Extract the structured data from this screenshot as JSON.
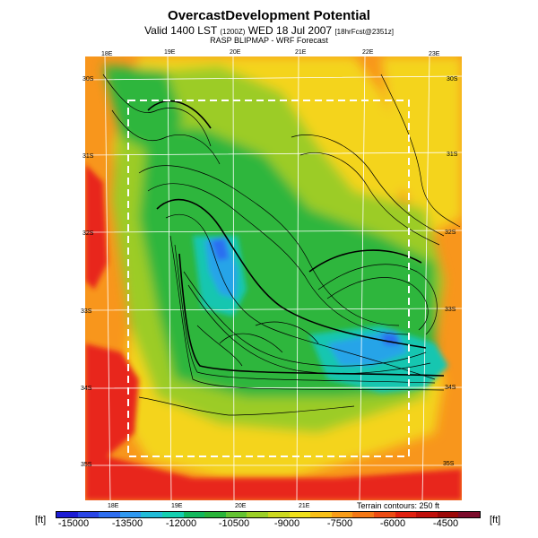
{
  "header": {
    "title": "OvercastDevelopment Potential",
    "subtitle_main": "Valid 1400 LST",
    "subtitle_code1": "(1200Z)",
    "subtitle_date": "WED 18 Jul 2007",
    "subtitle_code2": "[18hrFcst@2351z]",
    "source": "RASP BLIPMAP - WRF Forecast"
  },
  "axes": {
    "top_lon_labels": [
      "18E",
      "19E",
      "20E",
      "21E",
      "22E",
      "23E"
    ],
    "bottom_lon_labels": [
      "18E",
      "19E",
      "20E",
      "21E"
    ],
    "left_lat_labels": [
      "30S",
      "31S",
      "32S",
      "33S",
      "34S",
      "35S"
    ],
    "right_lat_labels": [
      "30S",
      "31S",
      "32S",
      "33S",
      "34S",
      "35S"
    ]
  },
  "legend": {
    "unit_left": "[ft]",
    "unit_right": "[ft]",
    "terrain_note": "Terrain contours: 250 ft",
    "tick_labels": [
      "-15000",
      "-13500",
      "-12000",
      "-10500",
      "-9000",
      "-7500",
      "-6000",
      "-4500"
    ],
    "colors": [
      "#1c1cd4",
      "#2a46e6",
      "#2e6ef0",
      "#2f98f0",
      "#22bcd8",
      "#14cfb0",
      "#12b85c",
      "#2ab43a",
      "#64c432",
      "#9cd028",
      "#ccd820",
      "#f0e01c",
      "#f8c018",
      "#f89c18",
      "#f47816",
      "#ec4c14",
      "#e02010",
      "#c0100c",
      "#9c0808",
      "#7c0c2c"
    ]
  },
  "map_colors": {
    "red": "#e8281a",
    "orange": "#f8961c",
    "yellow": "#f4d41a",
    "lime": "#9ccc28",
    "green": "#2db63c",
    "teal": "#18c6b0",
    "cyan": "#28a4e8",
    "blue": "#2a6ef0"
  }
}
